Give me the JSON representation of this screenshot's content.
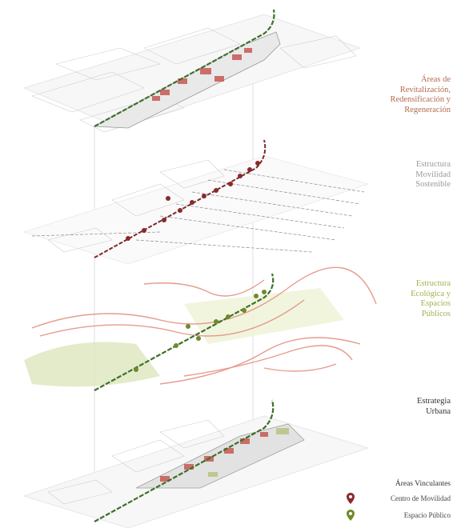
{
  "layers": [
    {
      "label": "Áreas de\nRevitalización,\nRedensificación y\nRegeneración",
      "color": "#b36a4d"
    },
    {
      "label": "Estructura\nMovilidad\nSostenible",
      "color": "#9a9a9a"
    },
    {
      "label": "Estructura\nEcológica y\nEspacios\nPúblicos",
      "color": "#a4b14b"
    },
    {
      "label": "Estrategia\nUrbana",
      "color": "#333333"
    }
  ],
  "legend": {
    "title": "Áreas Vinculantes",
    "items": [
      {
        "label": "Centro de Movilidad",
        "icon": "map-pin-icon",
        "color": "#8b2a2a"
      },
      {
        "label": "Espacio Público",
        "icon": "map-pin-icon",
        "color": "#6f8a2a"
      }
    ]
  },
  "colors": {
    "corridor": "#3f6f2a",
    "redevelopment": "#c4504a",
    "ecology_red": "#e28a7c",
    "ecology_green": "#b6c27a",
    "urban_lines": "#bdbdbd"
  }
}
